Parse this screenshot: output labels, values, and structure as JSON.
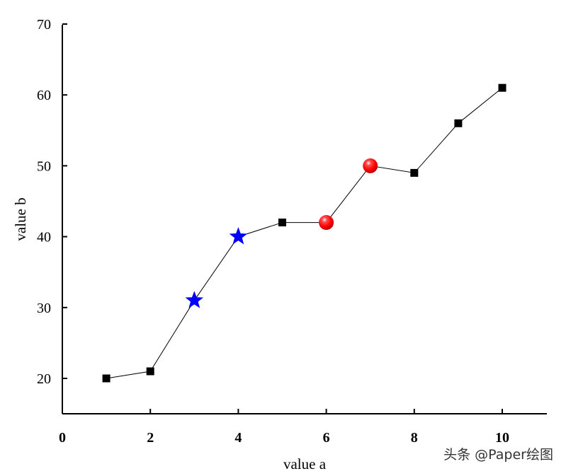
{
  "chart_data": {
    "type": "line",
    "x": [
      1,
      2,
      3,
      4,
      5,
      6,
      7,
      8,
      9,
      10
    ],
    "series": [
      {
        "values": [
          20,
          21,
          31,
          40,
          42,
          42,
          50,
          49,
          56,
          61
        ],
        "line_color": "#000000",
        "default_marker": "square",
        "default_marker_color": "#000000",
        "highlights": [
          {
            "x": 3,
            "marker": "star",
            "color": "#0000ff"
          },
          {
            "x": 4,
            "marker": "star",
            "color": "#0000ff"
          },
          {
            "x": 6,
            "marker": "sphere",
            "color": "#ff0000"
          },
          {
            "x": 7,
            "marker": "sphere",
            "color": "#ff0000"
          }
        ]
      }
    ],
    "xlabel": "value a",
    "ylabel": "value b",
    "xlim": [
      0,
      11
    ],
    "ylim": [
      15,
      70
    ],
    "xticks": [
      0,
      2,
      4,
      6,
      8,
      10
    ],
    "yticks": [
      20,
      30,
      40,
      50,
      60,
      70
    ],
    "grid": false
  },
  "watermark": "头条 @Paper绘图"
}
